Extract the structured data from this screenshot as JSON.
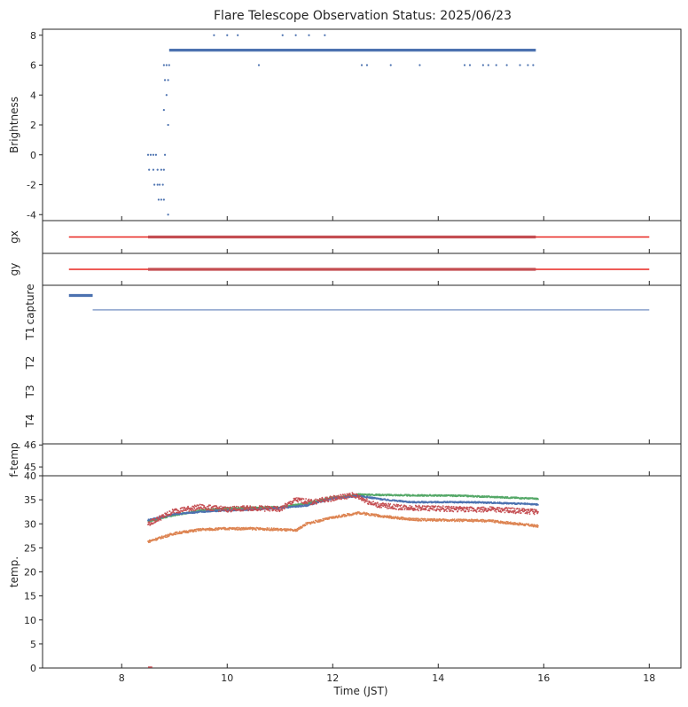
{
  "chart_data": {
    "type": "scatter",
    "title": "Flare Telescope Observation Status: 2025/06/23",
    "xlabel": "Time (JST)",
    "xlim": [
      6.5,
      18.6
    ],
    "xticks": [
      8,
      10,
      12,
      14,
      16,
      18
    ],
    "colors": {
      "blue": "#4c72b0",
      "orange": "#dd8452",
      "green": "#55a868",
      "red": "#c44e52",
      "redline": "#e8251f"
    },
    "panels": [
      {
        "id": "brightness",
        "ylabel": "Brightness",
        "ylim": [
          -4.4,
          8.4
        ],
        "yticks": [
          -4,
          -2,
          0,
          2,
          4,
          6,
          8
        ],
        "series": [
          {
            "name": "brightness-main",
            "color": "blue",
            "segments": [
              {
                "y": 7,
                "x": [
                  8.9,
                  15.85
                ]
              }
            ]
          },
          {
            "name": "brightness-scatter",
            "color": "blue",
            "points": [
              [
                8.5,
                0
              ],
              [
                8.55,
                0
              ],
              [
                8.6,
                0
              ],
              [
                8.65,
                0
              ],
              [
                8.52,
                -1
              ],
              [
                8.6,
                -1
              ],
              [
                8.68,
                -1
              ],
              [
                8.75,
                -1
              ],
              [
                8.8,
                -1
              ],
              [
                8.62,
                -2
              ],
              [
                8.68,
                -2
              ],
              [
                8.72,
                -2
              ],
              [
                8.78,
                -2
              ],
              [
                8.7,
                -3
              ],
              [
                8.75,
                -3
              ],
              [
                8.8,
                -3
              ],
              [
                8.82,
                0
              ],
              [
                8.88,
                -4
              ],
              [
                8.8,
                3
              ],
              [
                8.85,
                4
              ],
              [
                8.82,
                5
              ],
              [
                8.88,
                5
              ],
              [
                8.8,
                6
              ],
              [
                8.85,
                6
              ],
              [
                8.9,
                6
              ],
              [
                8.88,
                2
              ],
              [
                9.75,
                8
              ],
              [
                10,
                8
              ],
              [
                10.2,
                8
              ],
              [
                11.05,
                8
              ],
              [
                11.3,
                8
              ],
              [
                11.55,
                8
              ],
              [
                11.85,
                8
              ],
              [
                10.6,
                6
              ],
              [
                12.55,
                6
              ],
              [
                12.65,
                6
              ],
              [
                13.1,
                6
              ],
              [
                13.65,
                6
              ],
              [
                14.5,
                6
              ],
              [
                14.6,
                6
              ],
              [
                14.85,
                6
              ],
              [
                14.95,
                6
              ],
              [
                15.1,
                6
              ],
              [
                15.3,
                6
              ],
              [
                15.55,
                6
              ],
              [
                15.7,
                6
              ],
              [
                15.8,
                6
              ]
            ]
          }
        ]
      },
      {
        "id": "gx",
        "ylabel": "gx",
        "ylim": [
          -1,
          1
        ],
        "yticks": [],
        "series": [
          {
            "name": "gx-reference",
            "color": "redline",
            "segments": [
              {
                "y": 0,
                "x": [
                  7.0,
                  18.0
                ]
              }
            ]
          },
          {
            "name": "gx-data",
            "color": "red",
            "segments": [
              {
                "y": 0,
                "x": [
                  8.5,
                  15.85
                ]
              }
            ]
          }
        ]
      },
      {
        "id": "gy",
        "ylabel": "gy",
        "ylim": [
          -1,
          1
        ],
        "yticks": [],
        "series": [
          {
            "name": "gy-reference",
            "color": "redline",
            "segments": [
              {
                "y": 0,
                "x": [
                  7.0,
                  18.0
                ]
              }
            ]
          },
          {
            "name": "gy-data",
            "color": "red",
            "segments": [
              {
                "y": 0,
                "x": [
                  8.5,
                  15.85
                ]
              }
            ]
          }
        ]
      },
      {
        "id": "status",
        "ylabel": "",
        "ylim": [
          -0.3,
          5.15
        ],
        "categories": [
          "capture",
          "T1",
          "T2",
          "T3",
          "T4"
        ],
        "category_values": [
          4.5,
          3.5,
          2.5,
          1.5,
          0.5
        ],
        "series": [
          {
            "name": "capture-marker",
            "color": "blue",
            "segments": [
              {
                "y": 4.8,
                "x": [
                  7.0,
                  7.45
                ]
              }
            ]
          },
          {
            "name": "capture-line",
            "color": "blue",
            "segments": [
              {
                "y": 4.3,
                "x": [
                  7.45,
                  18.0
                ]
              }
            ]
          }
        ]
      },
      {
        "id": "ftemp",
        "ylabel": "f-temp",
        "ylim": [
          44.6,
          46.05
        ],
        "yticks": [
          45,
          46
        ],
        "series": []
      },
      {
        "id": "temp",
        "ylabel": "temp.",
        "ylim": [
          0,
          40
        ],
        "yticks": [
          0,
          5,
          10,
          15,
          20,
          25,
          30,
          35,
          40
        ],
        "series": [
          {
            "name": "temp-green",
            "color": "green",
            "x": [
              8.5,
              9.0,
              9.5,
              10.0,
              10.5,
              11.0,
              11.5,
              12.0,
              12.5,
              13.0,
              13.5,
              14.0,
              14.5,
              15.0,
              15.5,
              15.9
            ],
            "y": [
              30.5,
              31.8,
              32.8,
              33.2,
              33.4,
              33.5,
              34.2,
              35.5,
              36.1,
              36.0,
              35.9,
              35.9,
              35.8,
              35.6,
              35.4,
              35.2
            ]
          },
          {
            "name": "temp-blue",
            "color": "blue",
            "x": [
              8.5,
              9.0,
              9.5,
              10.0,
              10.5,
              11.0,
              11.5,
              12.0,
              12.5,
              13.0,
              13.5,
              14.0,
              14.5,
              15.0,
              15.5,
              15.9
            ],
            "y": [
              30.8,
              32.0,
              32.5,
              32.8,
              33.0,
              33.3,
              33.8,
              35.3,
              35.8,
              35.0,
              34.5,
              34.5,
              34.5,
              34.4,
              34.2,
              34.0
            ]
          },
          {
            "name": "temp-red",
            "color": "red",
            "x": [
              8.5,
              9.0,
              9.5,
              10.0,
              10.5,
              11.0,
              11.3,
              11.6,
              12.0,
              12.4,
              12.8,
              13.2,
              13.6,
              14.0,
              14.5,
              15.0,
              15.5,
              15.9
            ],
            "y": [
              30.0,
              32.7,
              33.5,
              33.0,
              33.3,
              33.0,
              35.0,
              34.5,
              35.3,
              36.0,
              34.0,
              33.5,
              33.3,
              33.2,
              33.0,
              33.0,
              32.7,
              32.5
            ]
          },
          {
            "name": "temp-orange",
            "color": "orange",
            "x": [
              8.5,
              9.0,
              9.5,
              10.0,
              10.5,
              11.0,
              11.3,
              11.5,
              12.0,
              12.5,
              13.0,
              13.5,
              14.0,
              14.5,
              15.0,
              15.5,
              15.9
            ],
            "y": [
              26.3,
              28.0,
              28.8,
              29.0,
              29.0,
              28.8,
              28.6,
              30.0,
              31.3,
              32.3,
              31.5,
              30.9,
              30.8,
              30.7,
              30.6,
              30.0,
              29.5
            ]
          }
        ]
      }
    ]
  }
}
